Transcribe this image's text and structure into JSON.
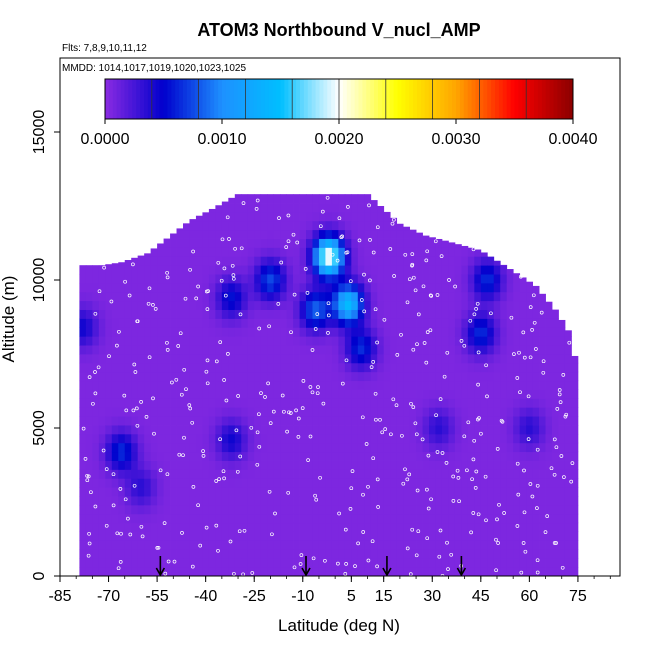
{
  "chart_data": {
    "type": "heatmap",
    "title": "ATOM3 Northbound V_nucl_AMP",
    "subtitle_flights": "Flts: 7,8,9,10,11,12",
    "subtitle_dates": "MMDD: 1014,1017,1019,1020,1023,1025",
    "xlabel": "Latitude (deg N)",
    "ylabel": "Altitude (m)",
    "xlim": [
      -85,
      88
    ],
    "ylim": [
      0,
      17500
    ],
    "x_ticks": [
      "-85",
      "-70",
      "-55",
      "-40",
      "-25",
      "-10",
      "5",
      "15",
      "30",
      "45",
      "60",
      "75"
    ],
    "y_ticks": [
      "0",
      "5000",
      "10000",
      "15000"
    ],
    "colorbar": {
      "min": 0,
      "max": 0.004,
      "tick_labels": [
        "0.0000",
        "0.0010",
        "0.0020",
        "0.0030",
        "0.0040"
      ],
      "colors": [
        "#8b2be2",
        "#0000cd",
        "#1e90ff",
        "#00bfff",
        "#ffffff",
        "#ffff00",
        "#ffa500",
        "#ff0000",
        "#8b0000"
      ]
    },
    "background_value": 5e-05,
    "hotspots": [
      {
        "lat": -2,
        "alt": 10800,
        "value": 0.002
      },
      {
        "lat": 4,
        "alt": 9200,
        "value": 0.0014
      },
      {
        "lat": -6,
        "alt": 9000,
        "value": 0.0008
      },
      {
        "lat": -20,
        "alt": 10000,
        "value": 0.0007
      },
      {
        "lat": -32,
        "alt": 9400,
        "value": 0.0005
      },
      {
        "lat": -66,
        "alt": 4200,
        "value": 0.0006
      },
      {
        "lat": -32,
        "alt": 4600,
        "value": 0.0004
      },
      {
        "lat": -78,
        "alt": 8400,
        "value": 0.0004
      },
      {
        "lat": 8,
        "alt": 7700,
        "value": 0.0006
      },
      {
        "lat": 45,
        "alt": 8200,
        "value": 0.0006
      },
      {
        "lat": 47,
        "alt": 10000,
        "value": 0.0006
      },
      {
        "lat": 32,
        "alt": 5000,
        "value": 0.0003
      },
      {
        "lat": 60,
        "alt": 5000,
        "value": 0.0003
      },
      {
        "lat": -60,
        "alt": 3000,
        "value": 0.0003
      }
    ],
    "arrows_lat": [
      -54,
      -9,
      16,
      39
    ],
    "grid": false,
    "legend_position": "top-inside"
  }
}
